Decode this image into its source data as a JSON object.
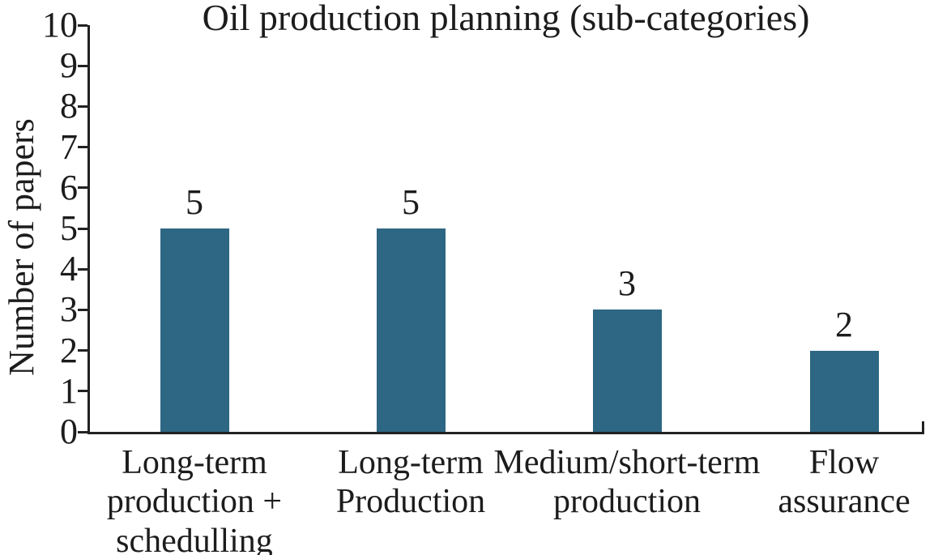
{
  "chart_data": {
    "type": "bar",
    "title": "Oil production planning (sub-categories)",
    "ylabel": "Number of papers",
    "xlabel": "",
    "categories": [
      "Long-term\nproduction +\nschedulling",
      "Long-term\nProduction",
      "Medium/short-term\nproduction",
      "Flow\nassurance"
    ],
    "values": [
      5,
      5,
      3,
      2
    ],
    "data_labels": [
      "5",
      "5",
      "3",
      "2"
    ],
    "ylim": [
      0,
      10
    ],
    "yticks": [
      "0",
      "1",
      "2",
      "3",
      "4",
      "5",
      "6",
      "7",
      "8",
      "9",
      "10"
    ],
    "grid": false,
    "legend": false,
    "tick_direction": "out",
    "bar_color": "#2e6783",
    "axis_color": "#222222",
    "text_color": "#1c1c1c",
    "background_color": "#ffffff"
  }
}
